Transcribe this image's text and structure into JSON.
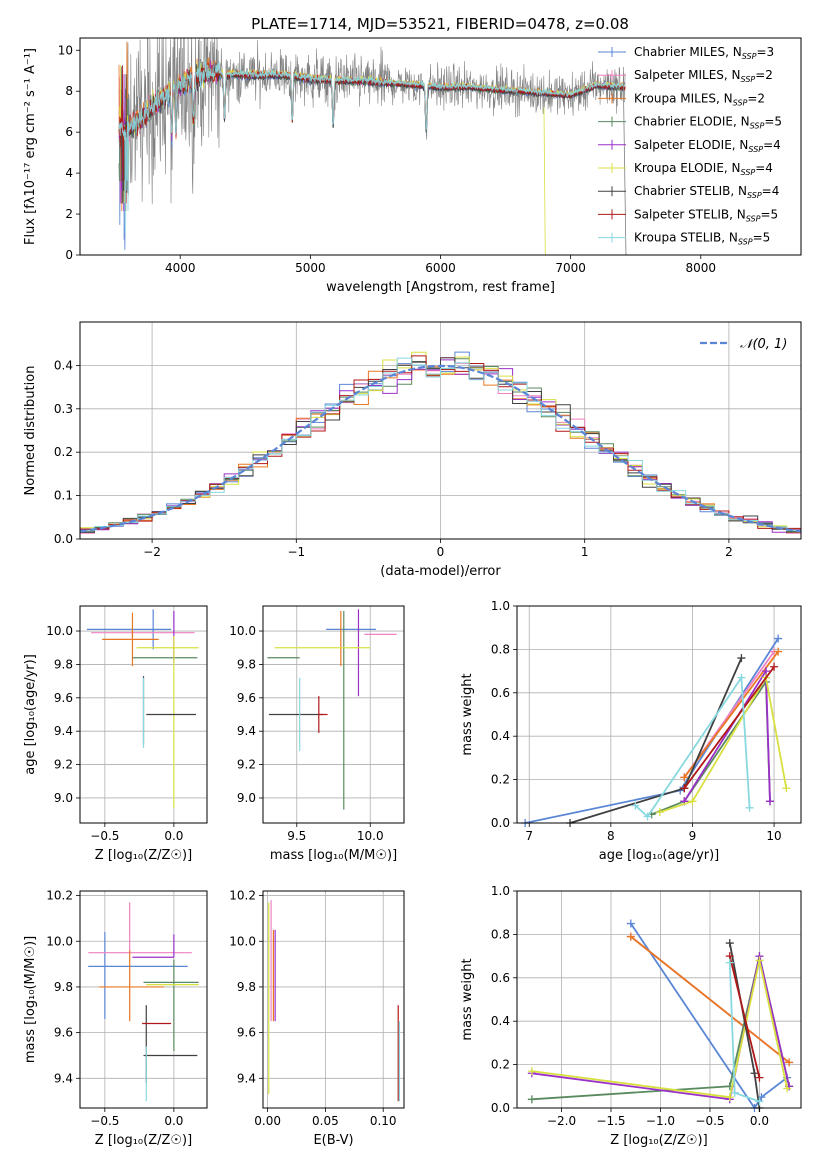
{
  "chart_data": [
    {
      "id": "spectrum",
      "type": "line",
      "title": "PLATE=1714, MJD=53521, FIBERID=0478, z=0.08",
      "xlabel": "wavelength [Angstrom, rest frame]",
      "ylabel": "Flux [fλ10⁻¹⁷ erg cm⁻² s⁻¹ A⁻¹]",
      "xlim": [
        3230,
        8770
      ],
      "ylim": [
        0,
        10.6
      ],
      "xticks": [
        4000,
        5000,
        6000,
        7000,
        8000
      ],
      "yticks": [
        0,
        2,
        4,
        6,
        8,
        10
      ],
      "data_range": [
        3530,
        7420
      ],
      "continuum_x": [
        3530,
        3600,
        3700,
        3800,
        3900,
        4000,
        4100,
        4200,
        4400,
        4600,
        4800,
        5000,
        5200,
        5400,
        5600,
        5800,
        6000,
        6200,
        6400,
        6600,
        6800,
        7000,
        7200,
        7400
      ],
      "continuum_y": [
        6.0,
        6.1,
        6.7,
        7.3,
        7.9,
        8.3,
        8.7,
        8.9,
        8.8,
        8.8,
        8.8,
        8.6,
        8.5,
        8.5,
        8.4,
        8.3,
        8.2,
        8.2,
        8.1,
        8.0,
        7.9,
        7.8,
        8.3,
        8.2
      ],
      "legend_position": "right",
      "series": [
        {
          "name": "Chabrier MILES, N",
          "sub": "SSP",
          "tail": "=3",
          "color": "#5b86d6"
        },
        {
          "name": "Salpeter MILES, N",
          "sub": "SSP",
          "tail": "=2",
          "color": "#f080c0"
        },
        {
          "name": "Kroupa MILES, N",
          "sub": "SSP",
          "tail": "=2",
          "color": "#e87722"
        },
        {
          "name": "Chabrier ELODIE, N",
          "sub": "SSP",
          "tail": "=5",
          "color": "#5a8a60"
        },
        {
          "name": "Salpeter ELODIE, N",
          "sub": "SSP",
          "tail": "=4",
          "color": "#9b30c8"
        },
        {
          "name": "Kroupa ELODIE, N",
          "sub": "SSP",
          "tail": "=4",
          "color": "#d8e040"
        },
        {
          "name": "Chabrier STELIB, N",
          "sub": "SSP",
          "tail": "=4",
          "color": "#404040"
        },
        {
          "name": "Salpeter STELIB, N",
          "sub": "SSP",
          "tail": "=5",
          "color": "#b01818"
        },
        {
          "name": "Kroupa STELIB, N",
          "sub": "SSP",
          "tail": "=5",
          "color": "#88d8e0"
        }
      ],
      "observed_color": "#808080"
    },
    {
      "id": "residuals",
      "type": "bar",
      "xlabel": "(data-model)/error",
      "ylabel": "Normed distribution",
      "xlim": [
        -2.5,
        2.5
      ],
      "ylim": [
        0,
        0.5
      ],
      "xticks": [
        -2,
        -1,
        0,
        1,
        2
      ],
      "xtick_labels": [
        "−2",
        "−1",
        "0",
        "1",
        "2"
      ],
      "yticks": [
        0,
        0.1,
        0.2,
        0.3,
        0.4
      ],
      "ytick_labels": [
        "0.0",
        "0.1",
        "0.2",
        "0.3",
        "0.4"
      ],
      "grid": true,
      "bin_width": 0.1,
      "legend": {
        "label": "𝒩(0, 1)",
        "position": "top-right",
        "color": "#5b86d6"
      },
      "normal_curve": {
        "mean": 0,
        "sd": 1
      }
    },
    {
      "id": "z_age",
      "type": "scatter",
      "xlabel": "Z [log₁₀(Z/Z☉)]",
      "ylabel": "age  [log₁₀(age/yr)]",
      "xlim": [
        -0.68,
        0.24
      ],
      "ylim": [
        8.85,
        10.15
      ],
      "xticks": [
        -0.5,
        0.0
      ],
      "xtick_labels": [
        "−0.5",
        "0.0"
      ],
      "yticks": [
        9.0,
        9.2,
        9.4,
        9.6,
        9.8,
        10.0
      ],
      "ytick_labels": [
        "9.0",
        "9.2",
        "9.4",
        "9.6",
        "9.8",
        "10.0"
      ],
      "errorbars": [
        {
          "x": -0.15,
          "xerr": [
            0.48,
            0.13
          ],
          "y": 10.01,
          "yerr": [
            0.12,
            0.12
          ],
          "color": "#5b86d6"
        },
        {
          "x": -0.3,
          "xerr": [
            0.3,
            0.45
          ],
          "y": 9.99,
          "yerr": [
            0.03,
            0.02
          ],
          "color": "#f080c0"
        },
        {
          "x": -0.3,
          "xerr": [
            0.22,
            0.19
          ],
          "y": 9.95,
          "yerr": [
            0.16,
            0.16
          ],
          "color": "#e87722"
        },
        {
          "x": -0.02,
          "xerr": [
            0.28,
            0.19
          ],
          "y": 9.84,
          "yerr": [
            0.0,
            0.0
          ],
          "color": "#5a8a60"
        },
        {
          "x": 0.0,
          "xerr": [
            0.0,
            0.0
          ],
          "y": 9.95,
          "yerr": [
            0.14,
            0.17
          ],
          "color": "#9b30c8"
        },
        {
          "x": 0.0,
          "xerr": [
            0.27,
            0.18
          ],
          "y": 9.9,
          "yerr": [
            0.96,
            0.07
          ],
          "color": "#d8e040"
        },
        {
          "x": -0.22,
          "xerr": [
            0.0,
            0.0
          ],
          "y": 9.5,
          "yerr": [
            0.18,
            0.23
          ],
          "color": "#404040"
        },
        {
          "x": 0.0,
          "xerr": [
            0.2,
            0.16
          ],
          "y": 9.5,
          "yerr": [
            0.0,
            0.0
          ],
          "color": "#404040"
        },
        {
          "x": -0.22,
          "xerr": [
            0.0,
            0.0
          ],
          "y": 9.5,
          "yerr": [
            0.2,
            0.22
          ],
          "color": "#88d8e0"
        }
      ]
    },
    {
      "id": "mass_age",
      "type": "scatter",
      "xlabel": "mass [log₁₀(M/M☉)]",
      "xlim": [
        9.27,
        10.23
      ],
      "ylim": [
        8.85,
        10.15
      ],
      "xticks": [
        9.5,
        10.0
      ],
      "xtick_labels": [
        "9.5",
        "10.0"
      ],
      "yticks": [
        9.0,
        9.2,
        9.4,
        9.6,
        9.8,
        10.0
      ],
      "ytick_labels": [
        "9.0",
        "9.2",
        "9.4",
        "9.6",
        "9.8",
        "10.0"
      ],
      "errorbars": [
        {
          "x": 9.84,
          "xerr": [
            0.14,
            0.2
          ],
          "y": 10.01,
          "yerr": [
            0.0,
            0.0
          ],
          "color": "#5b86d6"
        },
        {
          "x": 9.98,
          "xerr": [
            0.02,
            0.2
          ],
          "y": 9.98,
          "yerr": [
            0.0,
            0.0
          ],
          "color": "#f080c0"
        },
        {
          "x": 9.8,
          "xerr": [
            0.0,
            0.0
          ],
          "y": 9.95,
          "yerr": [
            0.16,
            0.17
          ],
          "color": "#e87722"
        },
        {
          "x": 9.82,
          "xerr": [
            0.0,
            0.0
          ],
          "y": 9.84,
          "yerr": [
            0.91,
            0.28
          ],
          "color": "#5a8a60"
        },
        {
          "x": 9.92,
          "xerr": [
            0.0,
            0.0
          ],
          "y": 9.9,
          "yerr": [
            0.29,
            0.23
          ],
          "color": "#9b30c8"
        },
        {
          "x": 9.65,
          "xerr": [
            0.3,
            0.35
          ],
          "y": 9.9,
          "yerr": [
            0.0,
            0.0
          ],
          "color": "#d8e040"
        },
        {
          "x": 9.5,
          "xerr": [
            0.2,
            0.02
          ],
          "y": 9.84,
          "yerr": [
            0.0,
            0.0
          ],
          "color": "#5a8a60"
        },
        {
          "x": 9.48,
          "xerr": [
            0.17,
            0.2
          ],
          "y": 9.5,
          "yerr": [
            0.0,
            0.0
          ],
          "color": "#404040"
        },
        {
          "x": 9.65,
          "xerr": [
            0.0,
            0.06
          ],
          "y": 9.5,
          "yerr": [
            0.11,
            0.11
          ],
          "color": "#b01818"
        },
        {
          "x": 9.52,
          "xerr": [
            0.0,
            0.0
          ],
          "y": 9.5,
          "yerr": [
            0.22,
            0.22
          ],
          "color": "#88d8e0"
        }
      ]
    },
    {
      "id": "weight_age",
      "type": "line",
      "xlabel": "age  [log₁₀(age/yr)]",
      "ylabel": "mass weight",
      "xlim": [
        6.85,
        10.33
      ],
      "ylim": [
        0,
        1.0
      ],
      "xticks": [
        7,
        8,
        9,
        10
      ],
      "yticks": [
        0,
        0.2,
        0.4,
        0.6,
        0.8,
        1.0
      ],
      "ytick_labels": [
        "0.0",
        "0.2",
        "0.4",
        "0.6",
        "0.8",
        "1.0"
      ],
      "grid": true,
      "series": [
        {
          "color": "#5b86d6",
          "x": [
            6.95,
            8.85,
            10.05
          ],
          "y": [
            0.0,
            0.15,
            0.85
          ]
        },
        {
          "color": "#f080c0",
          "x": [
            8.9,
            10.0
          ],
          "y": [
            0.21,
            0.79
          ]
        },
        {
          "color": "#e87722",
          "x": [
            8.9,
            10.05
          ],
          "y": [
            0.21,
            0.79
          ]
        },
        {
          "color": "#5a8a60",
          "x": [
            8.5,
            8.9,
            9.9,
            9.95
          ],
          "y": [
            0.04,
            0.1,
            0.65,
            0.1
          ]
        },
        {
          "color": "#9b30c8",
          "x": [
            8.9,
            9.9,
            9.95
          ],
          "y": [
            0.1,
            0.7,
            0.1
          ]
        },
        {
          "color": "#d8e040",
          "x": [
            8.6,
            9.0,
            9.9,
            10.15
          ],
          "y": [
            0.05,
            0.1,
            0.67,
            0.16
          ]
        },
        {
          "color": "#404040",
          "x": [
            7.5,
            8.9,
            9.6
          ],
          "y": [
            0.0,
            0.16,
            0.76
          ]
        },
        {
          "color": "#b01818",
          "x": [
            8.9,
            10.0
          ],
          "y": [
            0.16,
            0.72
          ]
        },
        {
          "color": "#88d8e0",
          "x": [
            8.3,
            8.45,
            9.6,
            9.7
          ],
          "y": [
            0.08,
            0.03,
            0.67,
            0.07
          ]
        }
      ]
    },
    {
      "id": "z_mass",
      "type": "scatter",
      "xlabel": "Z [log₁₀(Z/Z☉)]",
      "ylabel": "mass [log₁₀(M/M☉)]",
      "xlim": [
        -0.68,
        0.24
      ],
      "ylim": [
        9.27,
        10.22
      ],
      "xticks": [
        -0.5,
        0.0
      ],
      "xtick_labels": [
        "−0.5",
        "0.0"
      ],
      "yticks": [
        9.4,
        9.6,
        9.8,
        10.0,
        10.2
      ],
      "ytick_labels": [
        "9.4",
        "9.6",
        "9.8",
        "10.0",
        "10.2"
      ],
      "errorbars": [
        {
          "x": -0.5,
          "xerr": [
            0.12,
            0.6
          ],
          "y": 9.89,
          "yerr": [
            0.23,
            0.15
          ],
          "color": "#5b86d6"
        },
        {
          "x": -0.32,
          "xerr": [
            0.3,
            0.45
          ],
          "y": 9.95,
          "yerr": [
            0.0,
            0.22
          ],
          "color": "#f080c0"
        },
        {
          "x": -0.32,
          "xerr": [
            0.22,
            0.25
          ],
          "y": 9.8,
          "yerr": [
            0.15,
            0.16
          ],
          "color": "#e87722"
        },
        {
          "x": 0.0,
          "xerr": [
            0.22,
            0.18
          ],
          "y": 9.82,
          "yerr": [
            0.3,
            0.1
          ],
          "color": "#5a8a60"
        },
        {
          "x": 0.0,
          "xerr": [
            0.3,
            0.0
          ],
          "y": 9.93,
          "yerr": [
            0.0,
            0.1
          ],
          "color": "#9b30c8"
        },
        {
          "x": 0.0,
          "xerr": [
            0.2,
            0.18
          ],
          "y": 9.81,
          "yerr": [
            0.0,
            0.0
          ],
          "color": "#d8e040"
        },
        {
          "x": 0.0,
          "xerr": [
            0.22,
            0.17
          ],
          "y": 9.5,
          "yerr": [
            0.0,
            0.0
          ],
          "color": "#404040"
        },
        {
          "x": -0.2,
          "xerr": [
            0.0,
            0.0
          ],
          "y": 9.64,
          "yerr": [
            0.26,
            0.08
          ],
          "color": "#404040"
        },
        {
          "x": -0.1,
          "xerr": [
            0.13,
            0.08
          ],
          "y": 9.64,
          "yerr": [
            0.0,
            0.0
          ],
          "color": "#b01818"
        },
        {
          "x": -0.2,
          "xerr": [
            0.0,
            0.0
          ],
          "y": 9.52,
          "yerr": [
            0.22,
            0.02
          ],
          "color": "#88d8e0"
        }
      ]
    },
    {
      "id": "ebv_mass",
      "type": "scatter",
      "xlabel": "E(B-V)",
      "xlim": [
        -0.004,
        0.118
      ],
      "ylim": [
        9.27,
        10.22
      ],
      "xticks": [
        0.0,
        0.05,
        0.1
      ],
      "xtick_labels": [
        "0.00",
        "0.05",
        "0.10"
      ],
      "yticks": [
        9.4,
        9.6,
        9.8,
        10.0,
        10.2
      ],
      "ytick_labels": [
        "9.4",
        "9.6",
        "9.8",
        "10.0",
        "10.2"
      ],
      "errorbars": [
        {
          "x": 0.001,
          "xerr": [
            0.0,
            0.0
          ],
          "y": 9.8,
          "yerr": [
            0.47,
            0.37
          ],
          "color": "#d8e040"
        },
        {
          "x": 0.003,
          "xerr": [
            0.0,
            0.0
          ],
          "y": 9.85,
          "yerr": [
            0.2,
            0.33
          ],
          "color": "#f080c0"
        },
        {
          "x": 0.005,
          "xerr": [
            0.0,
            0.0
          ],
          "y": 9.85,
          "yerr": [
            0.2,
            0.2
          ],
          "color": "#e87722"
        },
        {
          "x": 0.0065,
          "xerr": [
            0.0,
            0.0
          ],
          "y": 9.85,
          "yerr": [
            0.2,
            0.2
          ],
          "color": "#9b30c8"
        },
        {
          "x": 0.113,
          "xerr": [
            0.0,
            0.0
          ],
          "y": 9.55,
          "yerr": [
            0.25,
            0.17
          ],
          "color": "#b01818"
        },
        {
          "x": 0.114,
          "xerr": [
            0.0,
            0.0
          ],
          "y": 9.5,
          "yerr": [
            0.2,
            0.15
          ],
          "color": "#88d8e0"
        }
      ]
    },
    {
      "id": "weight_z",
      "type": "line",
      "xlabel": "Z [log₁₀(Z/Z☉)]",
      "ylabel": "mass weight",
      "xlim": [
        -2.45,
        0.42
      ],
      "ylim": [
        0,
        1.0
      ],
      "xticks": [
        -2.0,
        -1.5,
        -1.0,
        -0.5,
        0.0
      ],
      "xtick_labels": [
        "−2.0",
        "−1.5",
        "−1.0",
        "−0.5",
        "0.0"
      ],
      "yticks": [
        0,
        0.2,
        0.4,
        0.6,
        0.8,
        1.0
      ],
      "ytick_labels": [
        "0.0",
        "0.2",
        "0.4",
        "0.6",
        "0.8",
        "1.0"
      ],
      "grid": true,
      "series": [
        {
          "color": "#5b86d6",
          "x": [
            -1.3,
            -0.05,
            0.02,
            0.28
          ],
          "y": [
            0.85,
            0.0,
            0.05,
            0.14
          ]
        },
        {
          "color": "#f080c0",
          "x": [
            -1.3,
            0.3
          ],
          "y": [
            0.79,
            0.21
          ]
        },
        {
          "color": "#e87722",
          "x": [
            -1.3,
            0.3
          ],
          "y": [
            0.79,
            0.21
          ]
        },
        {
          "color": "#5a8a60",
          "x": [
            -2.3,
            -0.3,
            0.0,
            0.3
          ],
          "y": [
            0.04,
            0.1,
            0.7,
            0.1
          ]
        },
        {
          "color": "#9b30c8",
          "x": [
            -2.3,
            -0.3,
            0.0,
            0.3
          ],
          "y": [
            0.16,
            0.04,
            0.7,
            0.1
          ]
        },
        {
          "color": "#d8e040",
          "x": [
            -2.3,
            -0.3,
            0.0,
            0.28
          ],
          "y": [
            0.17,
            0.05,
            0.68,
            0.09
          ]
        },
        {
          "color": "#404040",
          "x": [
            -0.3,
            -0.05,
            0.0
          ],
          "y": [
            0.76,
            0.16,
            0.0
          ]
        },
        {
          "color": "#b01818",
          "x": [
            -0.3,
            0.0
          ],
          "y": [
            0.7,
            0.14
          ]
        },
        {
          "color": "#88d8e0",
          "x": [
            -0.3,
            -0.25,
            0.0
          ],
          "y": [
            0.67,
            0.07,
            0.03
          ]
        }
      ]
    }
  ]
}
